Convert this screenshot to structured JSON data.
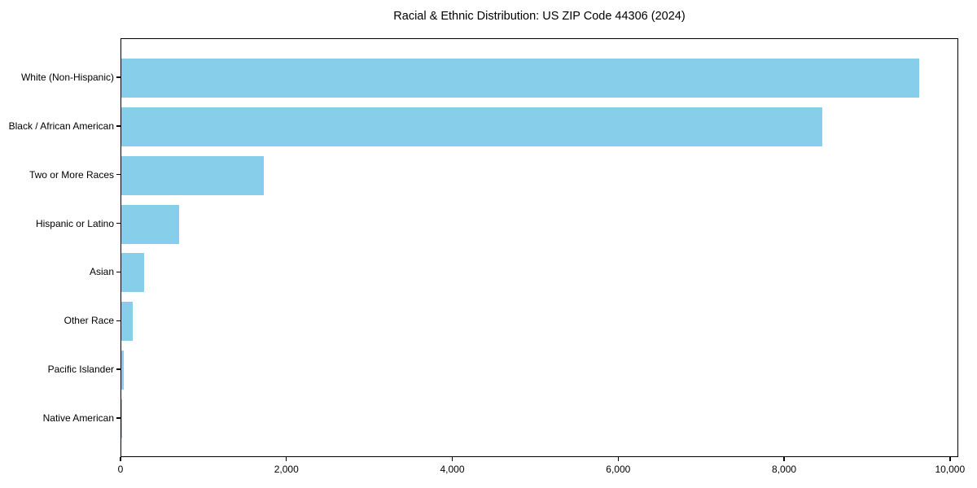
{
  "chart_data": {
    "type": "bar",
    "orientation": "horizontal",
    "title": "Racial & Ethnic Distribution: US ZIP Code 44306 (2024)",
    "categories": [
      "White (Non-Hispanic)",
      "Black / African American",
      "Two or More Races",
      "Hispanic or Latino",
      "Asian",
      "Other Race",
      "Pacific Islander",
      "Native American"
    ],
    "values": [
      9620,
      8450,
      1720,
      700,
      275,
      135,
      30,
      10
    ],
    "xlabel": "",
    "ylabel": "",
    "xlim": [
      0,
      10100
    ],
    "xticks": [
      0,
      2000,
      4000,
      6000,
      8000,
      10000
    ],
    "xtick_labels": [
      "0",
      "2,000",
      "4,000",
      "6,000",
      "8,000",
      "10,000"
    ],
    "bar_color": "#87CEEB",
    "frame_color": "#000000",
    "text_color": "#000000",
    "background_color": "#ffffff",
    "grid": false,
    "legend": null
  }
}
